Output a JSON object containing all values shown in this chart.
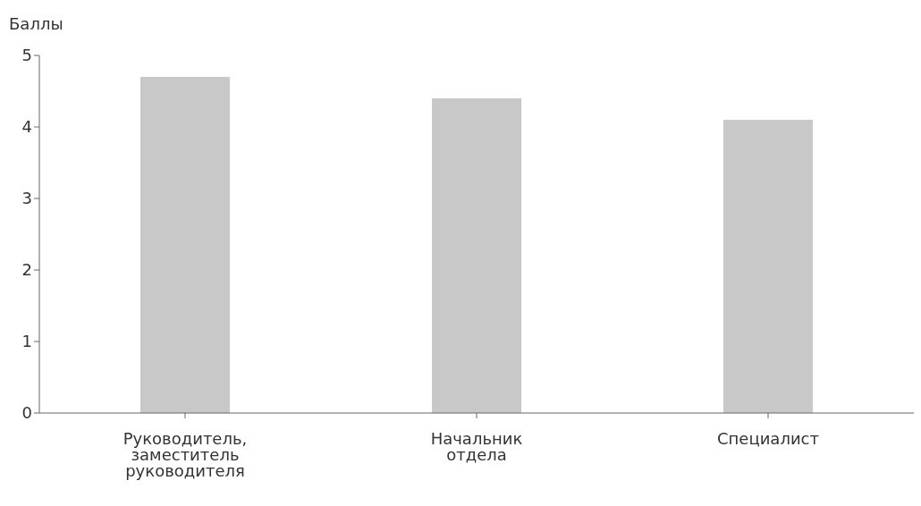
{
  "chart_data": {
    "type": "bar",
    "ylabel": "Баллы",
    "categories": [
      "Руководитель, заместитель руководителя",
      "Начальник отдела",
      "Специалист"
    ],
    "values": [
      4.7,
      4.4,
      4.1
    ],
    "color": "#c8c8c9",
    "ylim": [
      0,
      5
    ],
    "yticks": [
      0,
      1,
      2,
      3,
      4,
      5
    ],
    "grid": false,
    "legend": false
  }
}
